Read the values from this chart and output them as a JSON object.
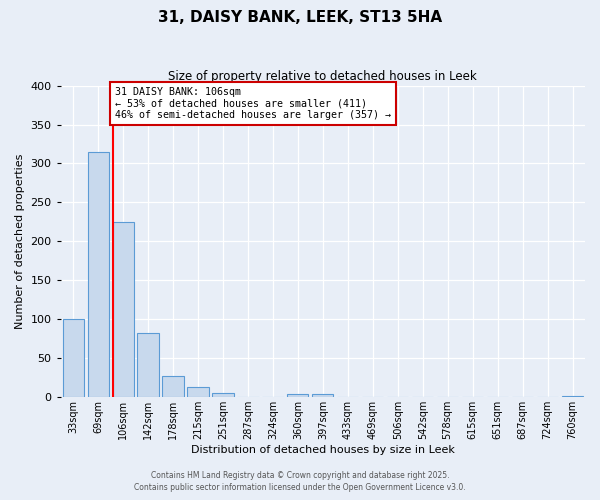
{
  "title": "31, DAISY BANK, LEEK, ST13 5HA",
  "subtitle": "Size of property relative to detached houses in Leek",
  "xlabel": "Distribution of detached houses by size in Leek",
  "ylabel": "Number of detached properties",
  "categories": [
    "33sqm",
    "69sqm",
    "106sqm",
    "142sqm",
    "178sqm",
    "215sqm",
    "251sqm",
    "287sqm",
    "324sqm",
    "360sqm",
    "397sqm",
    "433sqm",
    "469sqm",
    "506sqm",
    "542sqm",
    "578sqm",
    "615sqm",
    "651sqm",
    "687sqm",
    "724sqm",
    "760sqm"
  ],
  "values": [
    100,
    315,
    225,
    82,
    27,
    13,
    5,
    1,
    0,
    4,
    4,
    0,
    0,
    0,
    0,
    0,
    0,
    0,
    0,
    0,
    2
  ],
  "bar_color": "#c8d9ed",
  "bar_edge_color": "#5b9bd5",
  "red_line_index": 2,
  "annotation_line1": "31 DAISY BANK: 106sqm",
  "annotation_line2": "← 53% of detached houses are smaller (411)",
  "annotation_line3": "46% of semi-detached houses are larger (357) →",
  "annotation_box_color": "#ffffff",
  "annotation_box_edge": "#cc0000",
  "ylim": [
    0,
    400
  ],
  "yticks": [
    0,
    50,
    100,
    150,
    200,
    250,
    300,
    350,
    400
  ],
  "background_color": "#e8eef7",
  "grid_color": "#ffffff",
  "footer1": "Contains HM Land Registry data © Crown copyright and database right 2025.",
  "footer2": "Contains public sector information licensed under the Open Government Licence v3.0."
}
